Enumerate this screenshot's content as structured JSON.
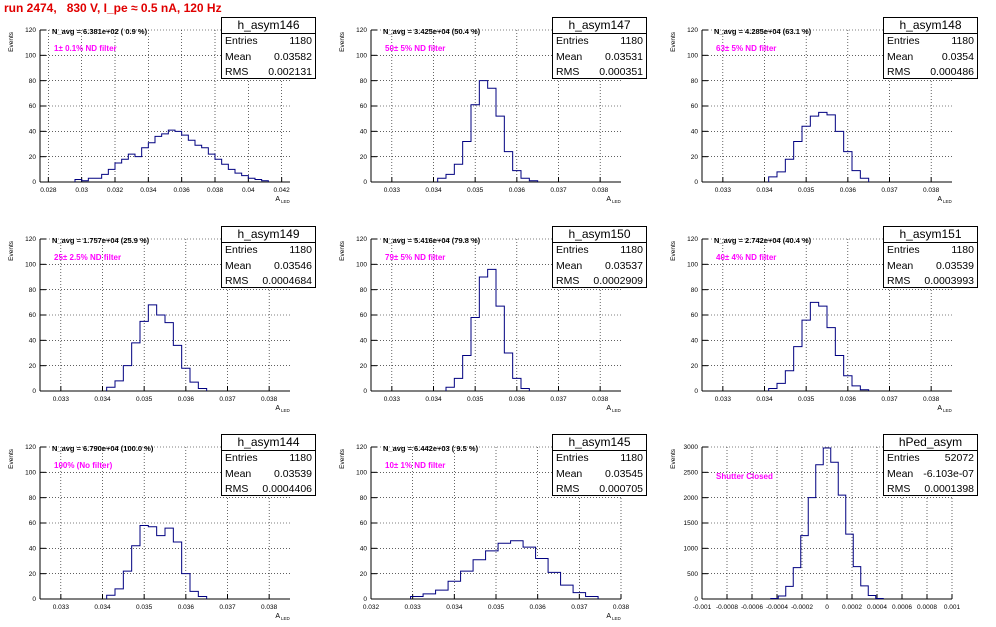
{
  "run_title": "run 2474,   830 V, I_pe ≈ 0.5 nA, 120 Hz",
  "colors": {
    "run_title": "#e00000",
    "histogram": "#000080",
    "filter_label": "#ff00ff",
    "axis": "#000000",
    "grid": "#000000"
  },
  "stats_row_labels": {
    "entries": "Entries",
    "mean": "Mean",
    "rms": "RMS"
  },
  "chart_data": [
    {
      "type": "histogram",
      "stats": {
        "name": "h_asym146",
        "entries": "1180",
        "mean": "0.03582",
        "rms": "0.002131"
      },
      "navg": "N_avg = 6.381e+02 ( 0.9 %)",
      "filter": "1± 0.1% ND filter",
      "ylabel": "Events",
      "xlabel": "A",
      "xlabel_sub": "LED",
      "xlim": [
        0.0275,
        0.0425
      ],
      "ylim": [
        0,
        120
      ],
      "xticks": [
        0.028,
        0.03,
        0.032,
        0.034,
        0.036,
        0.038,
        0.04,
        0.042
      ],
      "xtick_labels": [
        "0.028",
        "0.03",
        "0.032",
        "0.034",
        "0.036",
        "0.038",
        "0.04",
        "0.042"
      ],
      "yticks": [
        0,
        20,
        40,
        60,
        80,
        100,
        120
      ],
      "ytick_labels": [
        "0",
        "20",
        "40",
        "60",
        "80",
        "100",
        "120"
      ],
      "x": [
        0.0298,
        0.0302,
        0.0306,
        0.031,
        0.0314,
        0.0318,
        0.0322,
        0.0326,
        0.033,
        0.0334,
        0.0338,
        0.0342,
        0.0346,
        0.035,
        0.0354,
        0.0358,
        0.0362,
        0.0366,
        0.037,
        0.0374,
        0.0378,
        0.0382,
        0.0386,
        0.039,
        0.0394,
        0.0398,
        0.0402,
        0.0406,
        0.041
      ],
      "y": [
        2,
        1,
        3,
        3,
        6,
        10,
        15,
        18,
        22,
        20,
        27,
        31,
        36,
        38,
        41,
        40,
        37,
        33,
        29,
        27,
        22,
        18,
        14,
        10,
        7,
        5,
        3,
        2,
        1
      ]
    },
    {
      "type": "histogram",
      "stats": {
        "name": "h_asym147",
        "entries": "1180",
        "mean": "0.03531",
        "rms": "0.000351"
      },
      "navg": "N_avg = 3.425e+04 (50.4 %)",
      "filter": "50± 5% ND filter",
      "ylabel": "Events",
      "xlabel": "A",
      "xlabel_sub": "LED",
      "xlim": [
        0.0325,
        0.0385
      ],
      "ylim": [
        0,
        120
      ],
      "xticks": [
        0.033,
        0.034,
        0.035,
        0.036,
        0.037,
        0.038
      ],
      "xtick_labels": [
        "0.033",
        "0.034",
        "0.035",
        "0.036",
        "0.037",
        "0.038"
      ],
      "yticks": [
        0,
        20,
        40,
        60,
        80,
        100,
        120
      ],
      "ytick_labels": [
        "0",
        "20",
        "40",
        "60",
        "80",
        "100",
        "120"
      ],
      "x": [
        0.0342,
        0.0344,
        0.0346,
        0.0348,
        0.035,
        0.0352,
        0.0354,
        0.0356,
        0.0358,
        0.036,
        0.0362,
        0.0364
      ],
      "y": [
        3,
        6,
        14,
        32,
        61,
        80,
        74,
        52,
        24,
        9,
        3,
        1
      ]
    },
    {
      "type": "histogram",
      "stats": {
        "name": "h_asym148",
        "entries": "1180",
        "mean": "0.0354",
        "rms": "0.000486"
      },
      "navg": "N_avg = 4.285e+04 (63.1 %)",
      "filter": "63± 5% ND filter",
      "ylabel": "Events",
      "xlabel": "A",
      "xlabel_sub": "LED",
      "xlim": [
        0.0325,
        0.0385
      ],
      "ylim": [
        0,
        120
      ],
      "xticks": [
        0.033,
        0.034,
        0.035,
        0.036,
        0.037,
        0.038
      ],
      "xtick_labels": [
        "0.033",
        "0.034",
        "0.035",
        "0.036",
        "0.037",
        "0.038"
      ],
      "yticks": [
        0,
        20,
        40,
        60,
        80,
        100,
        120
      ],
      "ytick_labels": [
        "0",
        "20",
        "40",
        "60",
        "80",
        "100",
        "120"
      ],
      "x": [
        0.0342,
        0.0344,
        0.0346,
        0.0348,
        0.035,
        0.0352,
        0.0354,
        0.0356,
        0.0358,
        0.036,
        0.0362,
        0.0364
      ],
      "y": [
        4,
        8,
        18,
        32,
        44,
        52,
        55,
        53,
        40,
        24,
        9,
        3
      ]
    },
    {
      "type": "histogram",
      "stats": {
        "name": "h_asym149",
        "entries": "1180",
        "mean": "0.03546",
        "rms": "0.0004684"
      },
      "navg": "N_avg = 1.757e+04 (25.9 %)",
      "filter": "25± 2.5% ND filter",
      "ylabel": "Events",
      "xlabel": "A",
      "xlabel_sub": "LED",
      "xlim": [
        0.0325,
        0.0385
      ],
      "ylim": [
        0,
        120
      ],
      "xticks": [
        0.033,
        0.034,
        0.035,
        0.036,
        0.037,
        0.038
      ],
      "xtick_labels": [
        "0.033",
        "0.034",
        "0.035",
        "0.036",
        "0.037",
        "0.038"
      ],
      "yticks": [
        0,
        20,
        40,
        60,
        80,
        100,
        120
      ],
      "ytick_labels": [
        "0",
        "20",
        "40",
        "60",
        "80",
        "100",
        "120"
      ],
      "x": [
        0.0342,
        0.0344,
        0.0346,
        0.0348,
        0.035,
        0.0352,
        0.0354,
        0.0356,
        0.0358,
        0.036,
        0.0362,
        0.0364
      ],
      "y": [
        3,
        8,
        20,
        38,
        55,
        68,
        60,
        54,
        36,
        18,
        7,
        2
      ]
    },
    {
      "type": "histogram",
      "stats": {
        "name": "h_asym150",
        "entries": "1180",
        "mean": "0.03537",
        "rms": "0.0002909"
      },
      "navg": "N_avg = 5.416e+04 (79.8 %)",
      "filter": "79± 5% ND filter",
      "ylabel": "Events",
      "xlabel": "A",
      "xlabel_sub": "LED",
      "xlim": [
        0.0325,
        0.0385
      ],
      "ylim": [
        0,
        120
      ],
      "xticks": [
        0.033,
        0.034,
        0.035,
        0.036,
        0.037,
        0.038
      ],
      "xtick_labels": [
        "0.033",
        "0.034",
        "0.035",
        "0.036",
        "0.037",
        "0.038"
      ],
      "yticks": [
        0,
        20,
        40,
        60,
        80,
        100,
        120
      ],
      "ytick_labels": [
        "0",
        "20",
        "40",
        "60",
        "80",
        "100",
        "120"
      ],
      "x": [
        0.0344,
        0.0346,
        0.0348,
        0.035,
        0.0352,
        0.0354,
        0.0356,
        0.0358,
        0.036,
        0.0362
      ],
      "y": [
        3,
        10,
        28,
        58,
        90,
        96,
        67,
        30,
        10,
        2
      ]
    },
    {
      "type": "histogram",
      "stats": {
        "name": "h_asym151",
        "entries": "1180",
        "mean": "0.03539",
        "rms": "0.0003993"
      },
      "navg": "N_avg = 2.742e+04 (40.4 %)",
      "filter": "40± 4% ND filter",
      "ylabel": "Events",
      "xlabel": "A",
      "xlabel_sub": "LED",
      "xlim": [
        0.0325,
        0.0385
      ],
      "ylim": [
        0,
        120
      ],
      "xticks": [
        0.033,
        0.034,
        0.035,
        0.036,
        0.037,
        0.038
      ],
      "xtick_labels": [
        "0.033",
        "0.034",
        "0.035",
        "0.036",
        "0.037",
        "0.038"
      ],
      "yticks": [
        0,
        20,
        40,
        60,
        80,
        100,
        120
      ],
      "ytick_labels": [
        "0",
        "20",
        "40",
        "60",
        "80",
        "100",
        "120"
      ],
      "x": [
        0.0342,
        0.0344,
        0.0346,
        0.0348,
        0.035,
        0.0352,
        0.0354,
        0.0356,
        0.0358,
        0.036,
        0.0362,
        0.0364
      ],
      "y": [
        2,
        6,
        16,
        35,
        56,
        70,
        67,
        50,
        28,
        12,
        4,
        1
      ]
    },
    {
      "type": "histogram",
      "stats": {
        "name": "h_asym144",
        "entries": "1180",
        "mean": "0.03539",
        "rms": "0.0004406"
      },
      "navg": "N_avg = 6.790e+04 (100.0 %)",
      "filter": "100% (No filter)",
      "ylabel": "Events",
      "xlabel": "A",
      "xlabel_sub": "LED",
      "xlim": [
        0.0325,
        0.0385
      ],
      "ylim": [
        0,
        120
      ],
      "xticks": [
        0.033,
        0.034,
        0.035,
        0.036,
        0.037,
        0.038
      ],
      "xtick_labels": [
        "0.033",
        "0.034",
        "0.035",
        "0.036",
        "0.037",
        "0.038"
      ],
      "yticks": [
        0,
        20,
        40,
        60,
        80,
        100,
        120
      ],
      "ytick_labels": [
        "0",
        "20",
        "40",
        "60",
        "80",
        "100",
        "120"
      ],
      "x": [
        0.0342,
        0.0344,
        0.0346,
        0.0348,
        0.035,
        0.0352,
        0.0354,
        0.0356,
        0.0358,
        0.036,
        0.0362,
        0.0364
      ],
      "y": [
        3,
        8,
        22,
        42,
        58,
        57,
        50,
        56,
        45,
        20,
        6,
        2
      ]
    },
    {
      "type": "histogram",
      "stats": {
        "name": "h_asym145",
        "entries": "1180",
        "mean": "0.03545",
        "rms": "0.000705"
      },
      "navg": "N_avg = 6.442e+03 ( 9.5 %)",
      "filter": "10± 1% ND filter",
      "ylabel": "Events",
      "xlabel": "A",
      "xlabel_sub": "LED",
      "xlim": [
        0.032,
        0.038
      ],
      "ylim": [
        0,
        120
      ],
      "xticks": [
        0.032,
        0.033,
        0.034,
        0.035,
        0.036,
        0.037,
        0.038
      ],
      "xtick_labels": [
        "0.032",
        "0.033",
        "0.034",
        "0.035",
        "0.036",
        "0.037",
        "0.038"
      ],
      "yticks": [
        0,
        20,
        40,
        60,
        80,
        100,
        120
      ],
      "ytick_labels": [
        "0",
        "20",
        "40",
        "60",
        "80",
        "100",
        "120"
      ],
      "x": [
        0.0331,
        0.0334,
        0.0337,
        0.034,
        0.0343,
        0.0346,
        0.0349,
        0.0352,
        0.0355,
        0.0358,
        0.0361,
        0.0364,
        0.0367,
        0.037,
        0.0373
      ],
      "y": [
        2,
        4,
        7,
        14,
        22,
        31,
        38,
        44,
        46,
        41,
        32,
        21,
        11,
        5,
        2
      ]
    },
    {
      "type": "histogram",
      "stats": {
        "name": "hPed_asym",
        "entries": "52072",
        "mean": "-6.103e-07",
        "rms": "0.0001398"
      },
      "navg": "",
      "filter": "Shutter Closed",
      "ylabel": "Events",
      "xlabel": "",
      "xlabel_sub": "",
      "xlim": [
        -0.001,
        0.001
      ],
      "ylim": [
        0,
        3000
      ],
      "xticks": [
        -0.001,
        -0.0008,
        -0.0006,
        -0.0004,
        -0.0002,
        0,
        0.0002,
        0.0004,
        0.0006,
        0.0008,
        0.001
      ],
      "xtick_labels": [
        "-0.001",
        "-0.0008",
        "-0.0006",
        "-0.0004",
        "-0.0002",
        "0",
        "0.0002",
        "0.0004",
        "0.0006",
        "0.0008",
        "0.001"
      ],
      "yticks": [
        0,
        500,
        1000,
        1500,
        2000,
        2500,
        3000
      ],
      "ytick_labels": [
        "0",
        "500",
        "1000",
        "1500",
        "2000",
        "2500",
        "3000"
      ],
      "x": [
        -0.00042,
        -0.00036,
        -0.0003,
        -0.00024,
        -0.00018,
        -0.00012,
        -6e-05,
        0,
        6e-05,
        0.00012,
        0.00018,
        0.00024,
        0.0003,
        0.00036,
        0.00042
      ],
      "y": [
        10,
        60,
        250,
        620,
        1250,
        2000,
        2650,
        2980,
        2700,
        2050,
        1280,
        640,
        260,
        70,
        10
      ]
    }
  ]
}
